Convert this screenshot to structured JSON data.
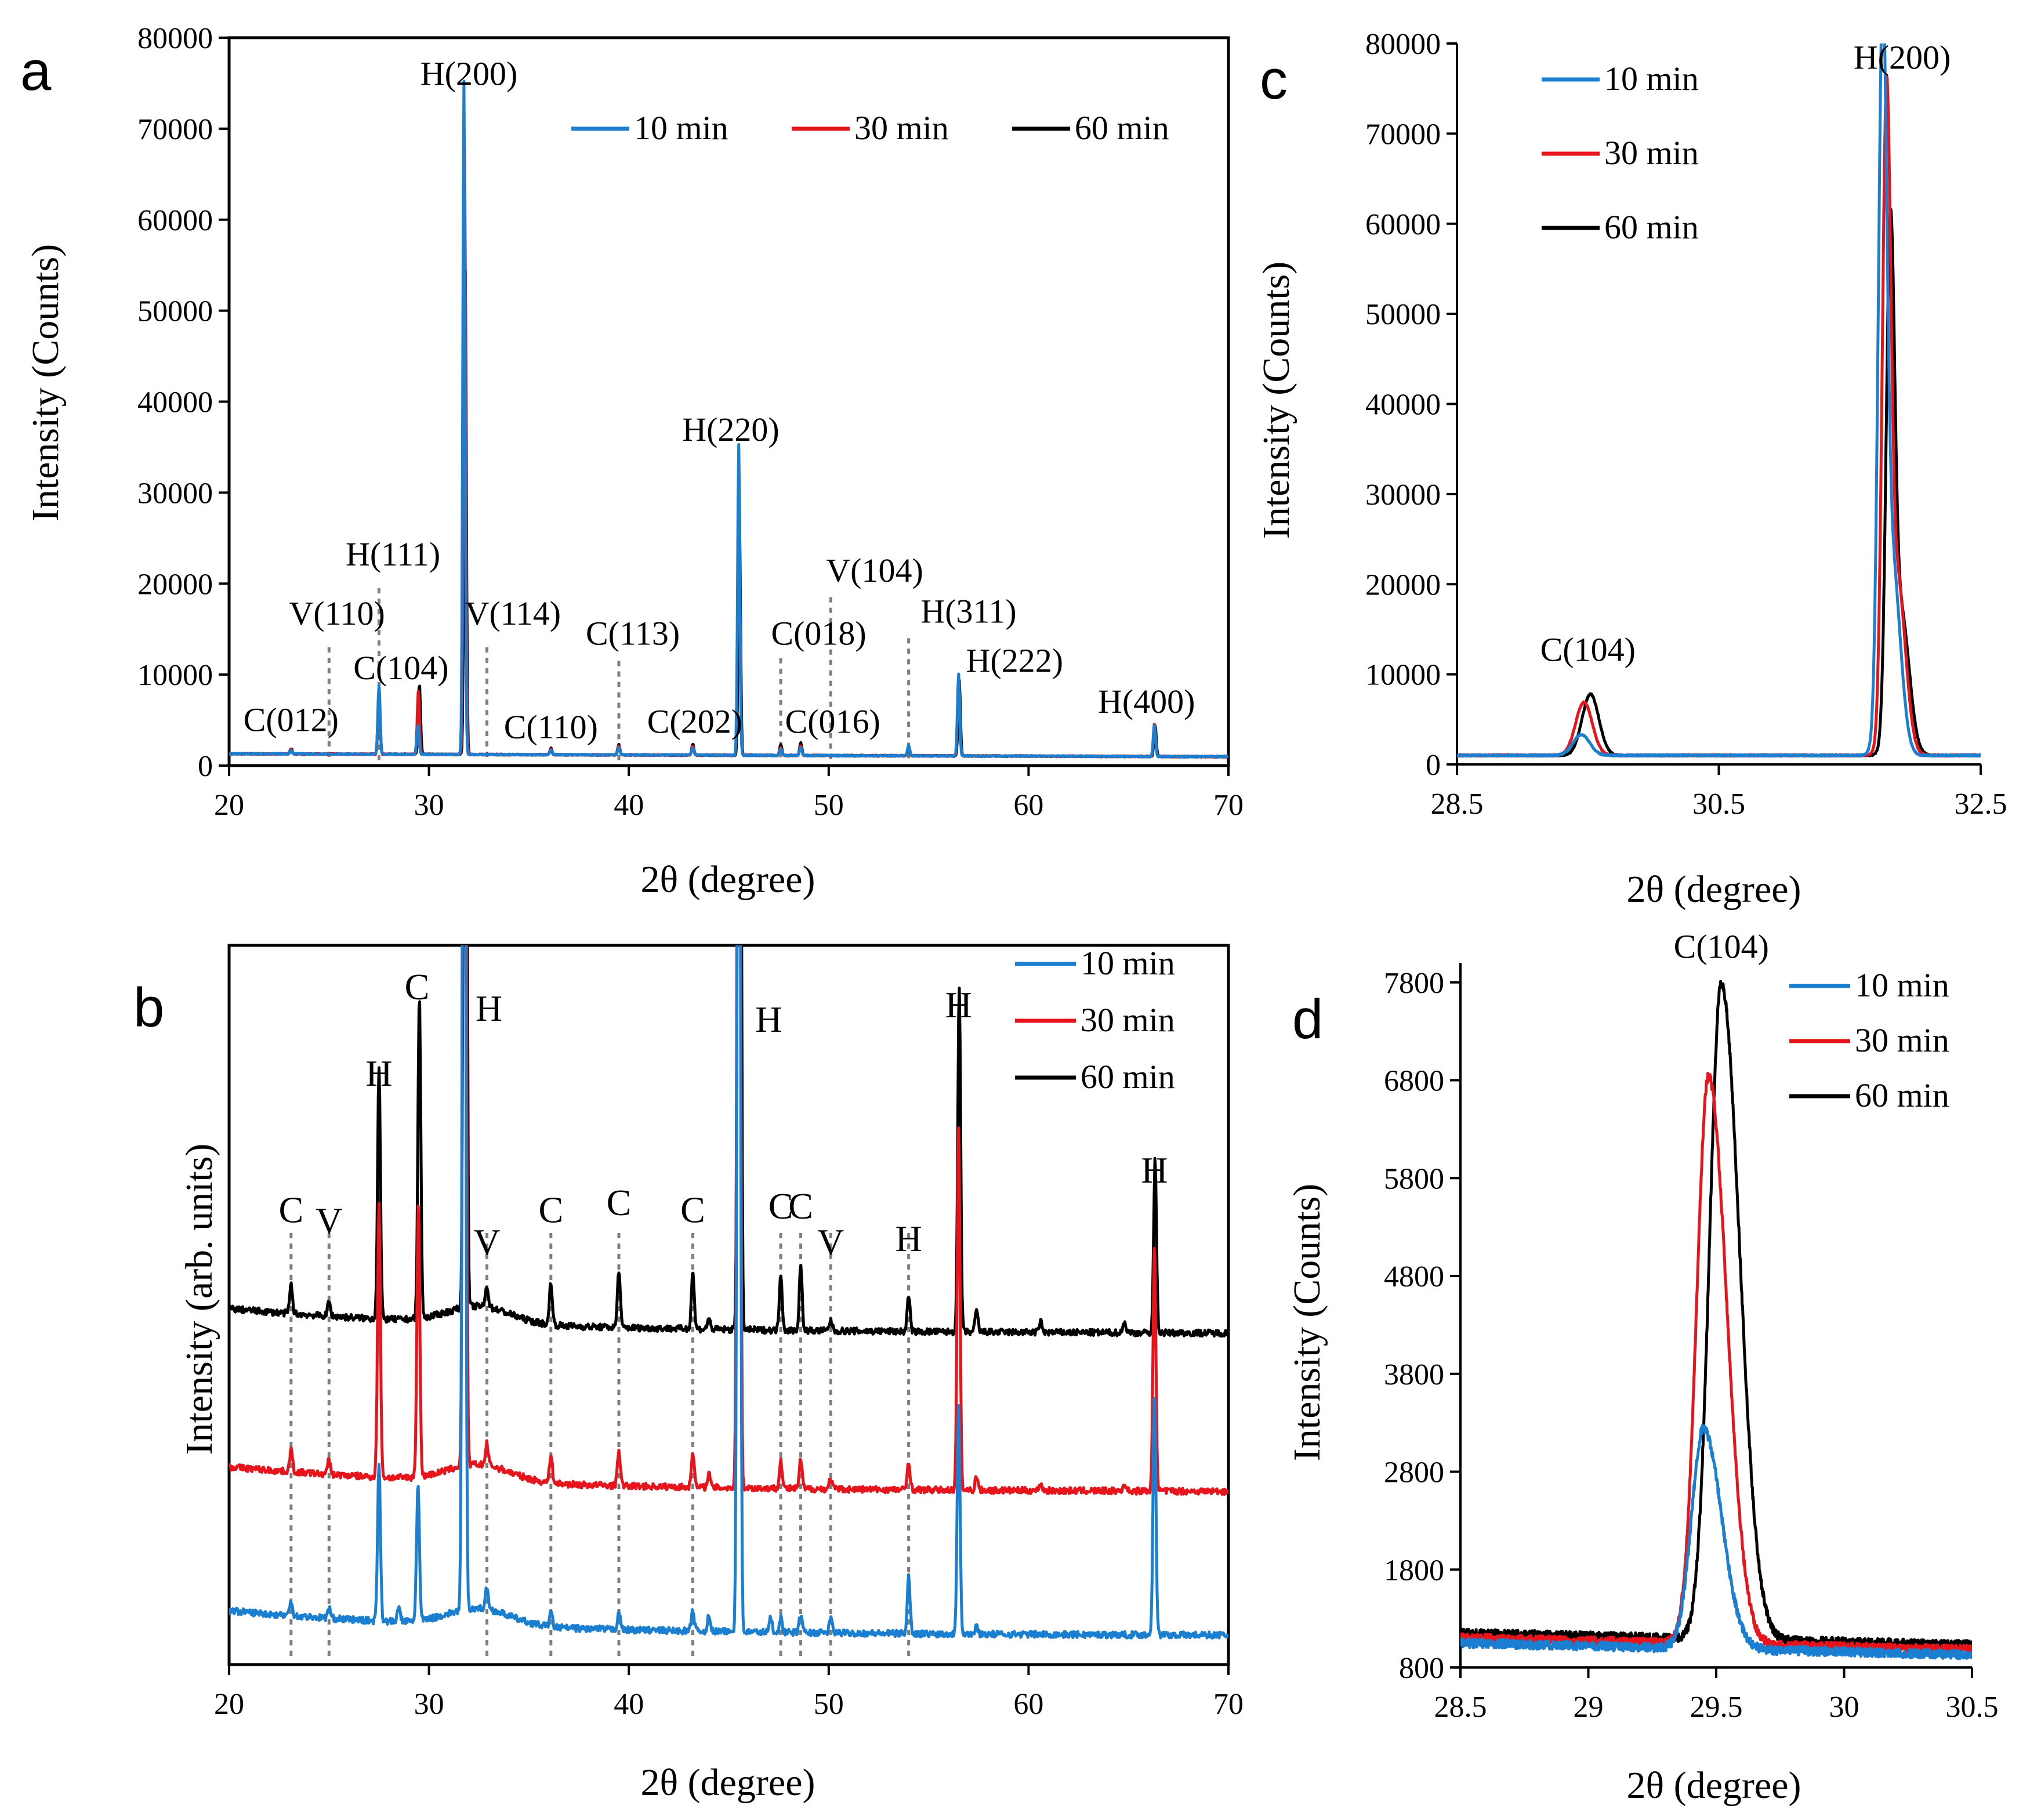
{
  "colors": {
    "10 min": "#1a7fd1",
    "30 min": "#e8141b",
    "60 min": "#000000"
  },
  "chart_data": [
    {
      "id": "a",
      "panel_label": "a",
      "type": "line",
      "xlabel": "2θ (degree)",
      "ylabel": "Intensity (Counts)",
      "xlim": [
        20,
        70
      ],
      "ylim": [
        0,
        80000
      ],
      "xticks": [
        "20",
        "30",
        "40",
        "50",
        "60",
        "70"
      ],
      "yticks": [
        "0",
        "10000",
        "20000",
        "30000",
        "40000",
        "50000",
        "60000",
        "70000",
        "80000"
      ],
      "legend_position": "top-right",
      "series": [
        {
          "name": "10 min",
          "baseline": 1300,
          "peaks": [
            [
              23.1,
              400
            ],
            [
              27.5,
              7600
            ],
            [
              29.45,
              3300
            ],
            [
              31.75,
              74000
            ],
            [
              36.1,
              500
            ],
            [
              39.5,
              800
            ],
            [
              43.2,
              800
            ],
            [
              45.5,
              34200
            ],
            [
              47.6,
              700
            ],
            [
              48.6,
              900
            ],
            [
              54.0,
              1100
            ],
            [
              56.5,
              9000
            ],
            [
              66.3,
              3600
            ]
          ]
        },
        {
          "name": "30 min",
          "baseline": 1300,
          "peaks": [
            [
              23.1,
              500
            ],
            [
              27.5,
              6800
            ],
            [
              29.47,
              6900
            ],
            [
              31.78,
              67000
            ],
            [
              36.1,
              600
            ],
            [
              39.5,
              1000
            ],
            [
              43.2,
              1000
            ],
            [
              45.5,
              30300
            ],
            [
              47.6,
              900
            ],
            [
              48.6,
              1100
            ],
            [
              54.0,
              900
            ],
            [
              56.5,
              8700
            ],
            [
              66.3,
              3700
            ]
          ]
        },
        {
          "name": "60 min",
          "baseline": 1300,
          "peaks": [
            [
              23.1,
              600
            ],
            [
              27.5,
              6500
            ],
            [
              29.52,
              7800
            ],
            [
              31.81,
              54200
            ],
            [
              36.1,
              700
            ],
            [
              39.5,
              1100
            ],
            [
              43.2,
              1200
            ],
            [
              45.53,
              26500
            ],
            [
              47.6,
              1200
            ],
            [
              48.6,
              1400
            ],
            [
              54.0,
              800
            ],
            [
              56.53,
              8300
            ],
            [
              66.33,
              3500
            ]
          ]
        }
      ],
      "annotations": [
        {
          "text": "C(012)",
          "x": 23.1,
          "y": 3800
        },
        {
          "text": "V(110)",
          "x": 25.4,
          "y": 15500,
          "line_x": 25.0,
          "line_to": 13000
        },
        {
          "text": "H(111)",
          "x": 28.2,
          "y": 22000,
          "line_x": 27.5,
          "line_to": 19500
        },
        {
          "text": "C(104)",
          "x": 28.6,
          "y": 9500
        },
        {
          "text": "H(200)",
          "x": 32.0,
          "y": 74800
        },
        {
          "text": "V(114)",
          "x": 34.2,
          "y": 15500,
          "line_x": 32.9,
          "line_to": 13000
        },
        {
          "text": "C(110)",
          "x": 36.1,
          "y": 3000
        },
        {
          "text": "C(113)",
          "x": 40.2,
          "y": 13300,
          "line_x": 39.5,
          "line_to": 11500
        },
        {
          "text": "H(220)",
          "x": 45.1,
          "y": 35700
        },
        {
          "text": "C(202)",
          "x": 43.3,
          "y": 3600
        },
        {
          "text": "C(018)",
          "x": 49.5,
          "y": 13300,
          "line_x": 47.6,
          "line_to": 11800
        },
        {
          "text": "C(016)",
          "x": 50.2,
          "y": 3600
        },
        {
          "text": "V(104)",
          "x": 52.3,
          "y": 20200,
          "line_x": 50.1,
          "line_to": 18500
        },
        {
          "text": "H(311)",
          "x": 57.0,
          "y": 15700,
          "line_x": 54.0,
          "line_to": 14000
        },
        {
          "text": "H(222)",
          "x": 59.3,
          "y": 10300
        },
        {
          "text": "H(400)",
          "x": 65.9,
          "y": 5800
        }
      ]
    },
    {
      "id": "b",
      "panel_label": "b",
      "type": "line",
      "xlabel": "2θ (degree)",
      "ylabel": "Intensity (arb. units)",
      "xlim": [
        20,
        70
      ],
      "ylim": [
        0,
        100
      ],
      "xticks": [
        "20",
        "30",
        "40",
        "50",
        "60",
        "70"
      ],
      "yticks": [],
      "legend_position": "top-right",
      "series": [
        {
          "name": "10 min",
          "offset": 4,
          "peaks": [
            [
              23.1,
              2
            ],
            [
              25.0,
              1.5
            ],
            [
              27.5,
              22
            ],
            [
              28.5,
              2
            ],
            [
              29.45,
              19
            ],
            [
              31.75,
              200
            ],
            [
              32.9,
              3
            ],
            [
              36.1,
              2
            ],
            [
              39.5,
              2.5
            ],
            [
              43.2,
              3
            ],
            [
              44.0,
              2
            ],
            [
              45.5,
              200
            ],
            [
              47.1,
              2
            ],
            [
              47.6,
              2
            ],
            [
              48.6,
              2.5
            ],
            [
              50.1,
              2
            ],
            [
              54.0,
              8
            ],
            [
              56.5,
              32
            ],
            [
              57.4,
              1
            ],
            [
              66.3,
              34
            ]
          ]
        },
        {
          "name": "30 min",
          "offset": 24,
          "peaks": [
            [
              23.1,
              3
            ],
            [
              25.0,
              2
            ],
            [
              27.5,
              38
            ],
            [
              29.47,
              38
            ],
            [
              31.78,
              200
            ],
            [
              32.9,
              3
            ],
            [
              36.1,
              4
            ],
            [
              39.5,
              5
            ],
            [
              43.2,
              5
            ],
            [
              44.0,
              2
            ],
            [
              45.5,
              200
            ],
            [
              47.6,
              4
            ],
            [
              48.6,
              4
            ],
            [
              50.1,
              1.5
            ],
            [
              54.0,
              4
            ],
            [
              56.5,
              50
            ],
            [
              57.4,
              2
            ],
            [
              60.6,
              1
            ],
            [
              64.8,
              1
            ],
            [
              66.3,
              34
            ]
          ]
        },
        {
          "name": "60 min",
          "offset": 46,
          "peaks": [
            [
              23.1,
              4
            ],
            [
              25.0,
              2
            ],
            [
              27.5,
              35
            ],
            [
              29.52,
              45
            ],
            [
              31.81,
              200
            ],
            [
              32.9,
              3
            ],
            [
              36.1,
              6
            ],
            [
              39.5,
              8
            ],
            [
              43.2,
              8
            ],
            [
              44.0,
              1.5
            ],
            [
              45.53,
              200
            ],
            [
              47.6,
              8
            ],
            [
              48.6,
              9
            ],
            [
              50.1,
              1.5
            ],
            [
              54.0,
              5
            ],
            [
              56.53,
              48
            ],
            [
              57.4,
              3
            ],
            [
              60.6,
              1.5
            ],
            [
              64.8,
              1.5
            ],
            [
              66.33,
              24
            ]
          ]
        }
      ],
      "annotations": [
        {
          "text": "C",
          "x": 23.1,
          "y": 61.5,
          "line_x": 23.1
        },
        {
          "text": "V",
          "x": 25.0,
          "y": 60.0,
          "line_x": 25.0
        },
        {
          "text": "H",
          "x": 27.5,
          "y": 80.5
        },
        {
          "text": "C",
          "x": 29.4,
          "y": 92.5
        },
        {
          "text": "H",
          "x": 33.0,
          "y": 89.5
        },
        {
          "text": "V",
          "x": 32.9,
          "y": 57.0,
          "line_x": 32.9
        },
        {
          "text": "C",
          "x": 36.1,
          "y": 61.5,
          "line_x": 36.1
        },
        {
          "text": "C",
          "x": 39.5,
          "y": 62.5,
          "line_x": 39.5
        },
        {
          "text": "C",
          "x": 43.2,
          "y": 61.5,
          "line_x": 43.2
        },
        {
          "text": "H",
          "x": 47.0,
          "y": 88.0
        },
        {
          "text": "C",
          "x": 47.6,
          "y": 62.0,
          "line_x": 47.6
        },
        {
          "text": "C",
          "x": 48.6,
          "y": 62.0,
          "line_x": 48.6
        },
        {
          "text": "V",
          "x": 50.1,
          "y": 57.0,
          "line_x": 50.1
        },
        {
          "text": "H",
          "x": 54.0,
          "y": 57.5,
          "line_x": 54.0
        },
        {
          "text": "H",
          "x": 56.5,
          "y": 90.0
        },
        {
          "text": "H",
          "x": 66.3,
          "y": 67.0
        }
      ]
    },
    {
      "id": "c",
      "panel_label": "c",
      "type": "line",
      "xlabel": "2θ (degree)",
      "ylabel": "Intensity (Counts)",
      "xlim": [
        28.5,
        32.5
      ],
      "ylim": [
        0,
        80000
      ],
      "xticks": [
        "28.5",
        "30.5",
        "32.5"
      ],
      "yticks": [
        "0",
        "10000",
        "20000",
        "30000",
        "40000",
        "50000",
        "60000",
        "70000",
        "80000"
      ],
      "legend_position": "top-left",
      "series": [
        {
          "name": "10 min",
          "baseline": 1000,
          "peaks": [
            [
              29.45,
              2300
            ],
            [
              31.75,
              73000
            ],
            [
              31.82,
              22000
            ]
          ]
        },
        {
          "name": "30 min",
          "baseline": 1000,
          "peaks": [
            [
              29.47,
              5900
            ],
            [
              31.78,
              66000
            ],
            [
              31.86,
              20000
            ]
          ]
        },
        {
          "name": "60 min",
          "baseline": 1000,
          "peaks": [
            [
              29.52,
              6800
            ],
            [
              31.81,
              53200
            ],
            [
              31.89,
              16000
            ]
          ]
        }
      ],
      "annotations": [
        {
          "text": "C(104)",
          "x": 29.5,
          "y": 11500
        },
        {
          "text": "H(200)",
          "x": 31.9,
          "y": 77200
        }
      ]
    },
    {
      "id": "d",
      "panel_label": "d",
      "type": "line",
      "xlabel": "2θ (degree)",
      "ylabel": "Intensity (Counts)",
      "xlim": [
        28.5,
        30.5
      ],
      "ylim": [
        800,
        8000
      ],
      "xticks": [
        "28.5",
        "29",
        "29.5",
        "30",
        "30.5"
      ],
      "yticks": [
        "800",
        "1800",
        "2800",
        "3800",
        "4800",
        "5800",
        "6800",
        "7800"
      ],
      "legend_position": "top-right",
      "series": [
        {
          "name": "10 min",
          "baseline": 1050,
          "peaks": [
            [
              29.45,
              2250
            ]
          ]
        },
        {
          "name": "30 min",
          "baseline": 1100,
          "peaks": [
            [
              29.47,
              5800
            ]
          ]
        },
        {
          "name": "60 min",
          "baseline": 1150,
          "peaks": [
            [
              29.52,
              6700
            ]
          ]
        }
      ],
      "annotations": [
        {
          "text": "C(104)",
          "x": 29.52,
          "y": 8050
        }
      ]
    }
  ]
}
